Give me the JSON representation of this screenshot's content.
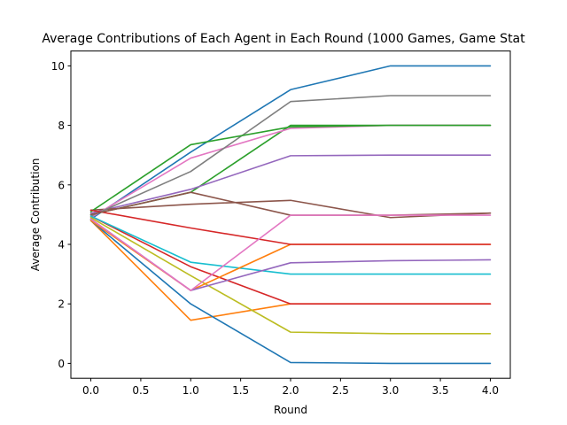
{
  "chart_data": {
    "type": "line",
    "title": "Average Contributions of Each Agent in Each Round (1000 Games, Game Stat",
    "xlabel": "Round",
    "ylabel": "Average Contribution",
    "x": [
      0,
      1,
      2,
      3,
      4
    ],
    "xlim": [
      -0.2,
      4.2
    ],
    "ylim": [
      -0.5,
      10.5
    ],
    "xticks": [
      "0.0",
      "0.5",
      "1.0",
      "1.5",
      "2.0",
      "2.5",
      "3.0",
      "3.5",
      "4.0"
    ],
    "xtick_values": [
      0,
      0.5,
      1,
      1.5,
      2,
      2.5,
      3,
      3.5,
      4
    ],
    "yticks": [
      "0",
      "2",
      "4",
      "6",
      "8",
      "10"
    ],
    "ytick_values": [
      0,
      2,
      4,
      6,
      8,
      10
    ],
    "grid": false,
    "series": [
      {
        "color": "#1f77b4",
        "values": [
          4.85,
          7.1,
          9.2,
          10.0,
          10.0
        ]
      },
      {
        "color": "#ff7f0e",
        "values": [
          4.8,
          1.45,
          2.0,
          2.0,
          2.0
        ]
      },
      {
        "color": "#2ca02c",
        "values": [
          5.0,
          5.75,
          8.0,
          8.0,
          8.0
        ]
      },
      {
        "color": "#d62728",
        "values": [
          4.95,
          3.25,
          2.0,
          2.0,
          2.0
        ]
      },
      {
        "color": "#9467bd",
        "values": [
          5.05,
          5.85,
          6.98,
          7.0,
          7.0
        ]
      },
      {
        "color": "#8c564b",
        "values": [
          5.15,
          5.35,
          5.48,
          4.9,
          5.05
        ]
      },
      {
        "color": "#e377c2",
        "values": [
          4.9,
          6.9,
          7.9,
          8.0,
          8.0
        ]
      },
      {
        "color": "#7f7f7f",
        "values": [
          4.95,
          6.45,
          8.8,
          9.0,
          9.0
        ]
      },
      {
        "color": "#bcbd22",
        "values": [
          4.9,
          2.95,
          1.05,
          1.0,
          1.0
        ]
      },
      {
        "color": "#17becf",
        "values": [
          4.95,
          3.4,
          3.0,
          3.0,
          3.0
        ]
      },
      {
        "color": "#1f77b4",
        "values": [
          4.8,
          2.0,
          0.03,
          0.0,
          0.0
        ]
      },
      {
        "color": "#ff7f0e",
        "values": [
          4.8,
          2.45,
          4.0,
          4.0,
          4.0
        ]
      },
      {
        "color": "#2ca02c",
        "values": [
          5.1,
          7.35,
          7.95,
          8.0,
          8.0
        ]
      },
      {
        "color": "#d62728",
        "values": [
          5.15,
          4.55,
          4.0,
          4.0,
          4.0
        ]
      },
      {
        "color": "#9467bd",
        "values": [
          4.85,
          2.45,
          3.38,
          3.45,
          3.48
        ]
      },
      {
        "color": "#8c564b",
        "values": [
          5.0,
          5.75,
          4.98,
          4.98,
          5.05
        ]
      },
      {
        "color": "#e377c2",
        "values": [
          4.85,
          2.45,
          4.98,
          4.98,
          4.98
        ]
      }
    ]
  }
}
